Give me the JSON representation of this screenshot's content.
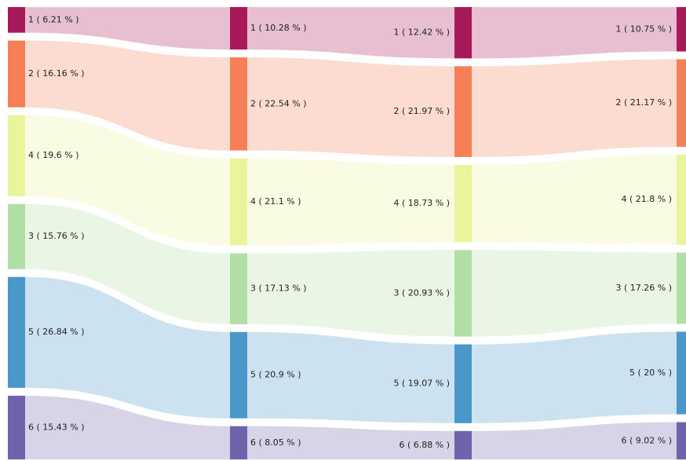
{
  "chart_data": {
    "type": "sankey",
    "colors": [
      "#a8195a",
      "#f67f58",
      "#eaf59b",
      "#b0dea4",
      "#4a98c9",
      "#7163ab"
    ],
    "columns": [
      {
        "labels": [
          "1 ( 6.21 % )",
          "2 ( 16.16 % )",
          "4 ( 19.6 % )",
          "3 ( 15.76 % )",
          "5 ( 26.84 % )",
          "6 ( 15.43 % )"
        ],
        "values": [
          6.21,
          16.16,
          19.6,
          15.76,
          26.84,
          15.43
        ]
      },
      {
        "labels": [
          "1 ( 10.28 % )",
          "2 ( 22.54 % )",
          "4 ( 21.1 % )",
          "3 ( 17.13 % )",
          "5 ( 20.9 % )",
          "6 ( 8.05 % )"
        ],
        "values": [
          10.28,
          22.54,
          21.1,
          17.13,
          20.9,
          8.05
        ]
      },
      {
        "labels": [
          "1 ( 12.42 % )",
          "2 ( 21.97 % )",
          "4 ( 18.73 % )",
          "3 ( 20.93 % )",
          "5 ( 19.07 % )",
          "6 ( 6.88 % )"
        ],
        "values": [
          12.42,
          21.97,
          18.73,
          20.93,
          19.07,
          6.88
        ]
      },
      {
        "labels": [
          "1 ( 10.75 % )",
          "2 ( 21.17 % )",
          "4 ( 21.8 % )",
          "3 ( 17.26 % )",
          "5 ( 20 % )",
          "6 ( 9.02 % )"
        ],
        "values": [
          10.75,
          21.17,
          21.8,
          17.26,
          20,
          9.02
        ]
      }
    ]
  }
}
